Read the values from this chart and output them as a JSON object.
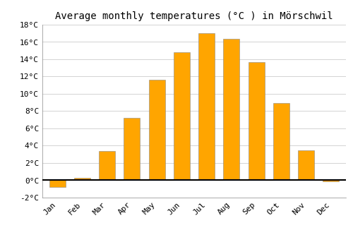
{
  "title": "Average monthly temperatures (°C ) in Mörschwil",
  "months": [
    "Jan",
    "Feb",
    "Mar",
    "Apr",
    "May",
    "Jun",
    "Jul",
    "Aug",
    "Sep",
    "Oct",
    "Nov",
    "Dec"
  ],
  "values": [
    -0.8,
    0.3,
    3.4,
    7.2,
    11.6,
    14.8,
    17.0,
    16.4,
    13.7,
    8.9,
    3.5,
    -0.1
  ],
  "bar_color": "#FFA500",
  "bar_edge_color": "#888888",
  "ylim": [
    -2,
    18
  ],
  "yticks": [
    -2,
    0,
    2,
    4,
    6,
    8,
    10,
    12,
    14,
    16,
    18
  ],
  "ytick_labels": [
    "-2°C",
    "0°C",
    "2°C",
    "4°C",
    "6°C",
    "8°C",
    "10°C",
    "12°C",
    "14°C",
    "16°C",
    "18°C"
  ],
  "background_color": "#ffffff",
  "grid_color": "#cccccc",
  "title_fontsize": 10,
  "tick_fontsize": 8,
  "font_family": "monospace"
}
